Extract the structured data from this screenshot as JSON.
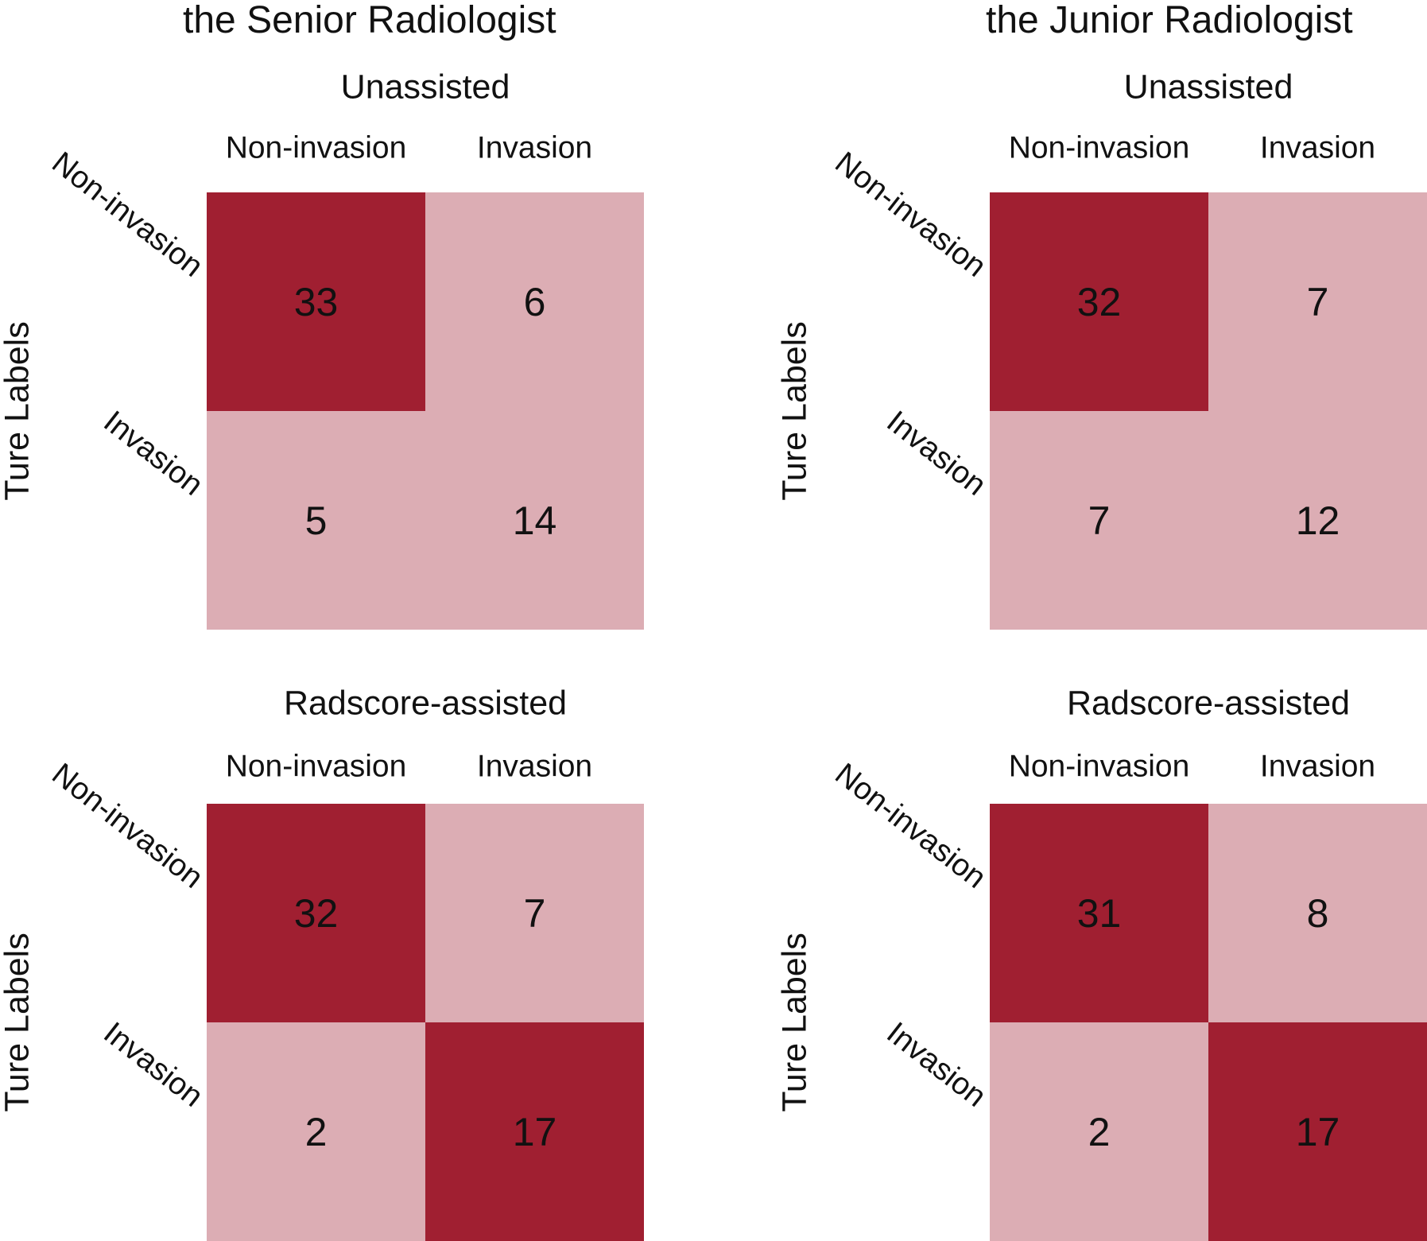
{
  "panels": [
    {
      "title": "the Senior Radiologist"
    },
    {
      "title": "the Junior Radiologist"
    }
  ],
  "colors": {
    "high": "#a01f31",
    "low": "#dcadb4",
    "text": "#111111"
  },
  "chart_data": [
    {
      "type": "heatmap",
      "panel": "the Senior Radiologist",
      "title": "Unassisted",
      "ylabel": "Ture Labels",
      "x_categories": [
        "Non-invasion",
        "Invasion"
      ],
      "y_categories": [
        "Non-invasion",
        "Invasion"
      ],
      "values": [
        [
          33,
          6
        ],
        [
          5,
          14
        ]
      ]
    },
    {
      "type": "heatmap",
      "panel": "the Junior Radiologist",
      "title": "Unassisted",
      "ylabel": "Ture Labels",
      "x_categories": [
        "Non-invasion",
        "Invasion"
      ],
      "y_categories": [
        "Non-invasion",
        "Invasion"
      ],
      "values": [
        [
          32,
          7
        ],
        [
          7,
          12
        ]
      ]
    },
    {
      "type": "heatmap",
      "panel": "the Senior Radiologist",
      "title": "Radscore-assisted",
      "ylabel": "Ture Labels",
      "x_categories": [
        "Non-invasion",
        "Invasion"
      ],
      "y_categories": [
        "Non-invasion",
        "Invasion"
      ],
      "values": [
        [
          32,
          7
        ],
        [
          2,
          17
        ]
      ]
    },
    {
      "type": "heatmap",
      "panel": "the Junior Radiologist",
      "title": "Radscore-assisted",
      "ylabel": "Ture Labels",
      "x_categories": [
        "Non-invasion",
        "Invasion"
      ],
      "y_categories": [
        "Non-invasion",
        "Invasion"
      ],
      "values": [
        [
          31,
          8
        ],
        [
          2,
          17
        ]
      ]
    }
  ]
}
